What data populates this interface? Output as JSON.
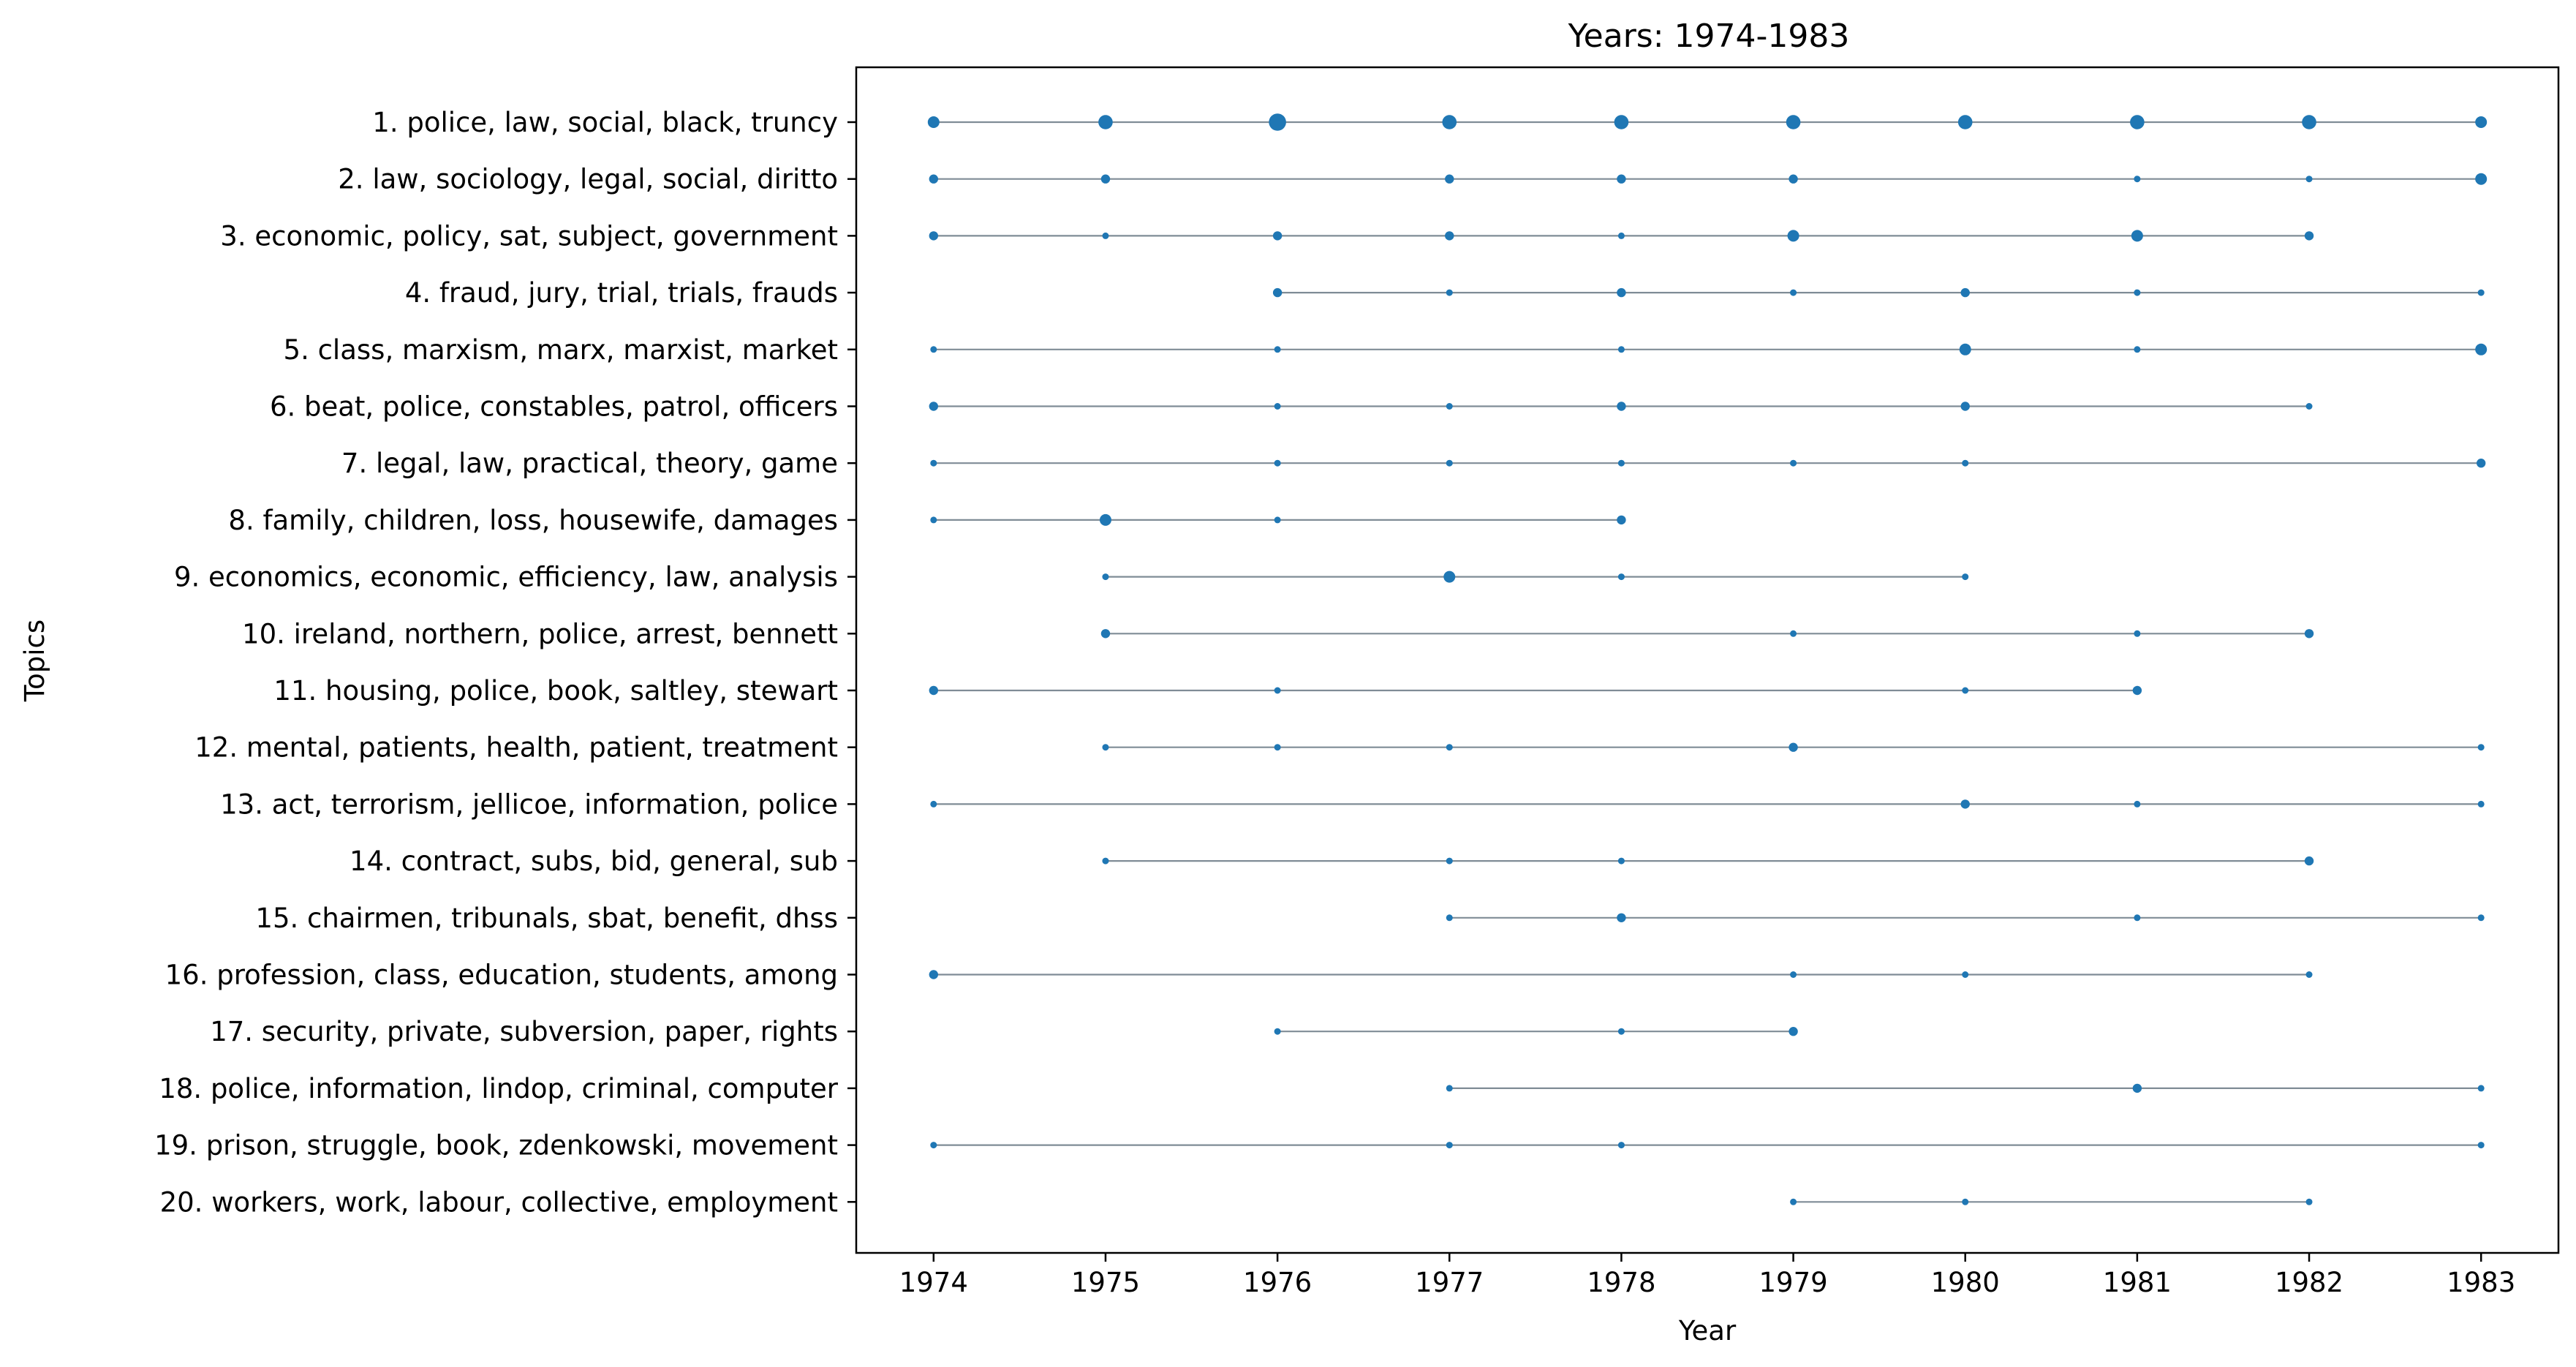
{
  "chart_data": {
    "type": "scatter",
    "title": "Years: 1974-1983",
    "xlabel": "Year",
    "ylabel": "Topics",
    "x_ticks": [
      "1974",
      "1975",
      "1976",
      "1977",
      "1978",
      "1979",
      "1980",
      "1981",
      "1982",
      "1983"
    ],
    "xlim": [
      1973.55,
      1983.45
    ],
    "grid": false,
    "marker_color": "#1f77b4",
    "line_color": "#7f8c96",
    "topics": [
      {
        "label": "1. police, law, social, black, truncy",
        "points": [
          {
            "year": 1974,
            "w": 3
          },
          {
            "year": 1975,
            "w": 4
          },
          {
            "year": 1976,
            "w": 5
          },
          {
            "year": 1977,
            "w": 4
          },
          {
            "year": 1978,
            "w": 4
          },
          {
            "year": 1979,
            "w": 4
          },
          {
            "year": 1980,
            "w": 4
          },
          {
            "year": 1981,
            "w": 4
          },
          {
            "year": 1982,
            "w": 4
          },
          {
            "year": 1983,
            "w": 3
          }
        ]
      },
      {
        "label": "2. law, sociology, legal, social, diritto",
        "points": [
          {
            "year": 1974,
            "w": 2
          },
          {
            "year": 1975,
            "w": 2
          },
          {
            "year": 1977,
            "w": 2
          },
          {
            "year": 1978,
            "w": 2
          },
          {
            "year": 1979,
            "w": 2
          },
          {
            "year": 1981,
            "w": 1
          },
          {
            "year": 1982,
            "w": 1
          },
          {
            "year": 1983,
            "w": 3
          }
        ]
      },
      {
        "label": "3. economic, policy, sat, subject, government",
        "points": [
          {
            "year": 1974,
            "w": 2
          },
          {
            "year": 1975,
            "w": 1
          },
          {
            "year": 1976,
            "w": 2
          },
          {
            "year": 1977,
            "w": 2
          },
          {
            "year": 1978,
            "w": 1
          },
          {
            "year": 1979,
            "w": 3
          },
          {
            "year": 1981,
            "w": 3
          },
          {
            "year": 1982,
            "w": 2
          }
        ]
      },
      {
        "label": "4. fraud, jury, trial, trials, frauds",
        "points": [
          {
            "year": 1976,
            "w": 2
          },
          {
            "year": 1977,
            "w": 1
          },
          {
            "year": 1978,
            "w": 2
          },
          {
            "year": 1979,
            "w": 1
          },
          {
            "year": 1980,
            "w": 2
          },
          {
            "year": 1981,
            "w": 1
          },
          {
            "year": 1983,
            "w": 1
          }
        ]
      },
      {
        "label": "5. class, marxism, marx, marxist, market",
        "points": [
          {
            "year": 1974,
            "w": 1
          },
          {
            "year": 1976,
            "w": 1
          },
          {
            "year": 1978,
            "w": 1
          },
          {
            "year": 1980,
            "w": 3
          },
          {
            "year": 1981,
            "w": 1
          },
          {
            "year": 1983,
            "w": 3
          }
        ]
      },
      {
        "label": "6. beat, police, constables, patrol, officers",
        "points": [
          {
            "year": 1974,
            "w": 2
          },
          {
            "year": 1976,
            "w": 1
          },
          {
            "year": 1977,
            "w": 1
          },
          {
            "year": 1978,
            "w": 2
          },
          {
            "year": 1980,
            "w": 2
          },
          {
            "year": 1982,
            "w": 1
          }
        ]
      },
      {
        "label": "7. legal, law, practical, theory, game",
        "points": [
          {
            "year": 1974,
            "w": 1
          },
          {
            "year": 1976,
            "w": 1
          },
          {
            "year": 1977,
            "w": 1
          },
          {
            "year": 1978,
            "w": 1
          },
          {
            "year": 1979,
            "w": 1
          },
          {
            "year": 1980,
            "w": 1
          },
          {
            "year": 1983,
            "w": 2
          }
        ]
      },
      {
        "label": "8. family, children, loss, housewife, damages",
        "points": [
          {
            "year": 1974,
            "w": 1
          },
          {
            "year": 1975,
            "w": 3
          },
          {
            "year": 1976,
            "w": 1
          },
          {
            "year": 1978,
            "w": 2
          }
        ]
      },
      {
        "label": "9. economics, economic, efficiency, law, analysis",
        "points": [
          {
            "year": 1975,
            "w": 1
          },
          {
            "year": 1977,
            "w": 3
          },
          {
            "year": 1978,
            "w": 1
          },
          {
            "year": 1980,
            "w": 1
          }
        ]
      },
      {
        "label": "10. ireland, northern, police, arrest, bennett",
        "points": [
          {
            "year": 1975,
            "w": 2
          },
          {
            "year": 1979,
            "w": 1
          },
          {
            "year": 1981,
            "w": 1
          },
          {
            "year": 1982,
            "w": 2
          }
        ]
      },
      {
        "label": "11. housing, police, book, saltley, stewart",
        "points": [
          {
            "year": 1974,
            "w": 2
          },
          {
            "year": 1976,
            "w": 1
          },
          {
            "year": 1980,
            "w": 1
          },
          {
            "year": 1981,
            "w": 2
          }
        ]
      },
      {
        "label": "12. mental, patients, health, patient, treatment",
        "points": [
          {
            "year": 1975,
            "w": 1
          },
          {
            "year": 1976,
            "w": 1
          },
          {
            "year": 1977,
            "w": 1
          },
          {
            "year": 1979,
            "w": 2
          },
          {
            "year": 1983,
            "w": 1
          }
        ]
      },
      {
        "label": "13. act, terrorism, jellicoe, information, police",
        "points": [
          {
            "year": 1974,
            "w": 1
          },
          {
            "year": 1980,
            "w": 2
          },
          {
            "year": 1981,
            "w": 1
          },
          {
            "year": 1983,
            "w": 1
          }
        ]
      },
      {
        "label": "14. contract, subs, bid, general, sub",
        "points": [
          {
            "year": 1975,
            "w": 1
          },
          {
            "year": 1977,
            "w": 1
          },
          {
            "year": 1978,
            "w": 1
          },
          {
            "year": 1982,
            "w": 2
          }
        ]
      },
      {
        "label": "15. chairmen, tribunals, sbat, benefit, dhss",
        "points": [
          {
            "year": 1977,
            "w": 1
          },
          {
            "year": 1978,
            "w": 2
          },
          {
            "year": 1981,
            "w": 1
          },
          {
            "year": 1983,
            "w": 1
          }
        ]
      },
      {
        "label": "16. profession, class, education, students, among",
        "points": [
          {
            "year": 1974,
            "w": 2
          },
          {
            "year": 1979,
            "w": 1
          },
          {
            "year": 1980,
            "w": 1
          },
          {
            "year": 1982,
            "w": 1
          }
        ]
      },
      {
        "label": "17. security, private, subversion, paper, rights",
        "points": [
          {
            "year": 1976,
            "w": 1
          },
          {
            "year": 1978,
            "w": 1
          },
          {
            "year": 1979,
            "w": 2
          }
        ]
      },
      {
        "label": "18. police, information, lindop, criminal, computer",
        "points": [
          {
            "year": 1977,
            "w": 1
          },
          {
            "year": 1981,
            "w": 2
          },
          {
            "year": 1983,
            "w": 1
          }
        ]
      },
      {
        "label": "19. prison, struggle, book, zdenkowski, movement",
        "points": [
          {
            "year": 1974,
            "w": 1
          },
          {
            "year": 1977,
            "w": 1
          },
          {
            "year": 1978,
            "w": 1
          },
          {
            "year": 1983,
            "w": 1
          }
        ]
      },
      {
        "label": "20. workers, work, labour, collective, employment",
        "points": [
          {
            "year": 1979,
            "w": 1
          },
          {
            "year": 1980,
            "w": 1
          },
          {
            "year": 1982,
            "w": 1
          }
        ]
      }
    ]
  }
}
